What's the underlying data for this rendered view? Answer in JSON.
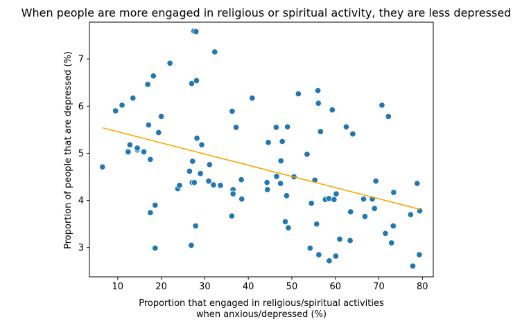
{
  "chart_data": {
    "type": "scatter",
    "title": "When people are more engaged in religious or spiritual activity, they are less depressed",
    "xlabel_line1": "Proportion that engaged in religious/spiritual activities",
    "xlabel_line2": "when anxious/depressed (%)",
    "ylabel": "Proportion of people that are depressed (%)",
    "xlim": [
      3.5,
      82.5
    ],
    "ylim": [
      2.38,
      7.78
    ],
    "xticks": [
      10,
      20,
      30,
      40,
      50,
      60,
      70,
      80
    ],
    "yticks": [
      3,
      4,
      5,
      6,
      7
    ],
    "grid": false,
    "point_color": "#1f77b4",
    "trend_color": "#ffa500",
    "trend_line": {
      "x": [
        6.5,
        79.5
      ],
      "y": [
        5.54,
        3.81
      ]
    },
    "points": [
      {
        "x": 6.5,
        "y": 4.71
      },
      {
        "x": 9.5,
        "y": 5.9
      },
      {
        "x": 11.0,
        "y": 6.02
      },
      {
        "x": 12.4,
        "y": 5.03
      },
      {
        "x": 12.8,
        "y": 5.18
      },
      {
        "x": 13.5,
        "y": 6.17
      },
      {
        "x": 14.5,
        "y": 5.07
      },
      {
        "x": 14.5,
        "y": 5.11
      },
      {
        "x": 16.0,
        "y": 5.03
      },
      {
        "x": 16.9,
        "y": 6.46
      },
      {
        "x": 17.1,
        "y": 5.6
      },
      {
        "x": 17.5,
        "y": 4.87
      },
      {
        "x": 17.5,
        "y": 3.74
      },
      {
        "x": 18.2,
        "y": 6.64
      },
      {
        "x": 18.6,
        "y": 3.9
      },
      {
        "x": 18.6,
        "y": 2.99
      },
      {
        "x": 19.4,
        "y": 5.44
      },
      {
        "x": 20.0,
        "y": 5.78
      },
      {
        "x": 22.0,
        "y": 6.91
      },
      {
        "x": 23.8,
        "y": 4.25
      },
      {
        "x": 24.2,
        "y": 4.32
      },
      {
        "x": 26.5,
        "y": 4.62
      },
      {
        "x": 26.9,
        "y": 3.05
      },
      {
        "x": 27.0,
        "y": 6.48
      },
      {
        "x": 27.1,
        "y": 4.38
      },
      {
        "x": 27.2,
        "y": 4.83
      },
      {
        "x": 27.5,
        "y": 7.59
      },
      {
        "x": 27.6,
        "y": 4.38
      },
      {
        "x": 27.9,
        "y": 3.46
      },
      {
        "x": 28.0,
        "y": 7.58
      },
      {
        "x": 28.1,
        "y": 6.54
      },
      {
        "x": 28.2,
        "y": 5.32
      },
      {
        "x": 29.0,
        "y": 4.57
      },
      {
        "x": 29.3,
        "y": 5.18
      },
      {
        "x": 30.9,
        "y": 4.41
      },
      {
        "x": 31.1,
        "y": 4.76
      },
      {
        "x": 32.0,
        "y": 4.33
      },
      {
        "x": 32.3,
        "y": 7.15
      },
      {
        "x": 33.6,
        "y": 4.32
      },
      {
        "x": 36.2,
        "y": 3.67
      },
      {
        "x": 36.3,
        "y": 5.89
      },
      {
        "x": 36.5,
        "y": 4.23
      },
      {
        "x": 36.5,
        "y": 4.14
      },
      {
        "x": 37.2,
        "y": 5.55
      },
      {
        "x": 38.4,
        "y": 4.44
      },
      {
        "x": 38.5,
        "y": 4.03
      },
      {
        "x": 40.9,
        "y": 6.17
      },
      {
        "x": 44.3,
        "y": 4.38
      },
      {
        "x": 44.4,
        "y": 4.23
      },
      {
        "x": 44.6,
        "y": 5.23
      },
      {
        "x": 46.4,
        "y": 5.55
      },
      {
        "x": 46.5,
        "y": 4.51
      },
      {
        "x": 47.4,
        "y": 4.36
      },
      {
        "x": 47.5,
        "y": 4.84
      },
      {
        "x": 47.8,
        "y": 5.25
      },
      {
        "x": 48.5,
        "y": 3.55
      },
      {
        "x": 48.8,
        "y": 4.1
      },
      {
        "x": 49.0,
        "y": 5.56
      },
      {
        "x": 49.2,
        "y": 3.42
      },
      {
        "x": 50.5,
        "y": 4.5
      },
      {
        "x": 51.5,
        "y": 6.26
      },
      {
        "x": 53.5,
        "y": 4.98
      },
      {
        "x": 54.2,
        "y": 2.99
      },
      {
        "x": 54.5,
        "y": 3.94
      },
      {
        "x": 55.3,
        "y": 4.43
      },
      {
        "x": 55.7,
        "y": 3.5
      },
      {
        "x": 56.0,
        "y": 6.33
      },
      {
        "x": 56.1,
        "y": 6.06
      },
      {
        "x": 56.2,
        "y": 2.85
      },
      {
        "x": 56.6,
        "y": 5.46
      },
      {
        "x": 57.7,
        "y": 4.02
      },
      {
        "x": 58.5,
        "y": 4.04
      },
      {
        "x": 58.6,
        "y": 2.72
      },
      {
        "x": 59.3,
        "y": 5.92
      },
      {
        "x": 59.7,
        "y": 4.02
      },
      {
        "x": 60.1,
        "y": 2.82
      },
      {
        "x": 60.2,
        "y": 4.14
      },
      {
        "x": 61.0,
        "y": 3.18
      },
      {
        "x": 62.5,
        "y": 5.56
      },
      {
        "x": 63.4,
        "y": 3.15
      },
      {
        "x": 63.5,
        "y": 3.76
      },
      {
        "x": 64.0,
        "y": 5.41
      },
      {
        "x": 66.5,
        "y": 4.03
      },
      {
        "x": 66.8,
        "y": 3.66
      },
      {
        "x": 68.5,
        "y": 4.03
      },
      {
        "x": 69.0,
        "y": 3.83
      },
      {
        "x": 69.3,
        "y": 4.41
      },
      {
        "x": 70.7,
        "y": 6.02
      },
      {
        "x": 71.5,
        "y": 3.3
      },
      {
        "x": 72.2,
        "y": 5.78
      },
      {
        "x": 72.9,
        "y": 3.1
      },
      {
        "x": 73.3,
        "y": 3.46
      },
      {
        "x": 73.4,
        "y": 4.17
      },
      {
        "x": 77.3,
        "y": 3.7
      },
      {
        "x": 77.8,
        "y": 2.61
      },
      {
        "x": 78.8,
        "y": 4.36
      },
      {
        "x": 79.3,
        "y": 2.85
      },
      {
        "x": 79.4,
        "y": 3.78
      }
    ]
  }
}
